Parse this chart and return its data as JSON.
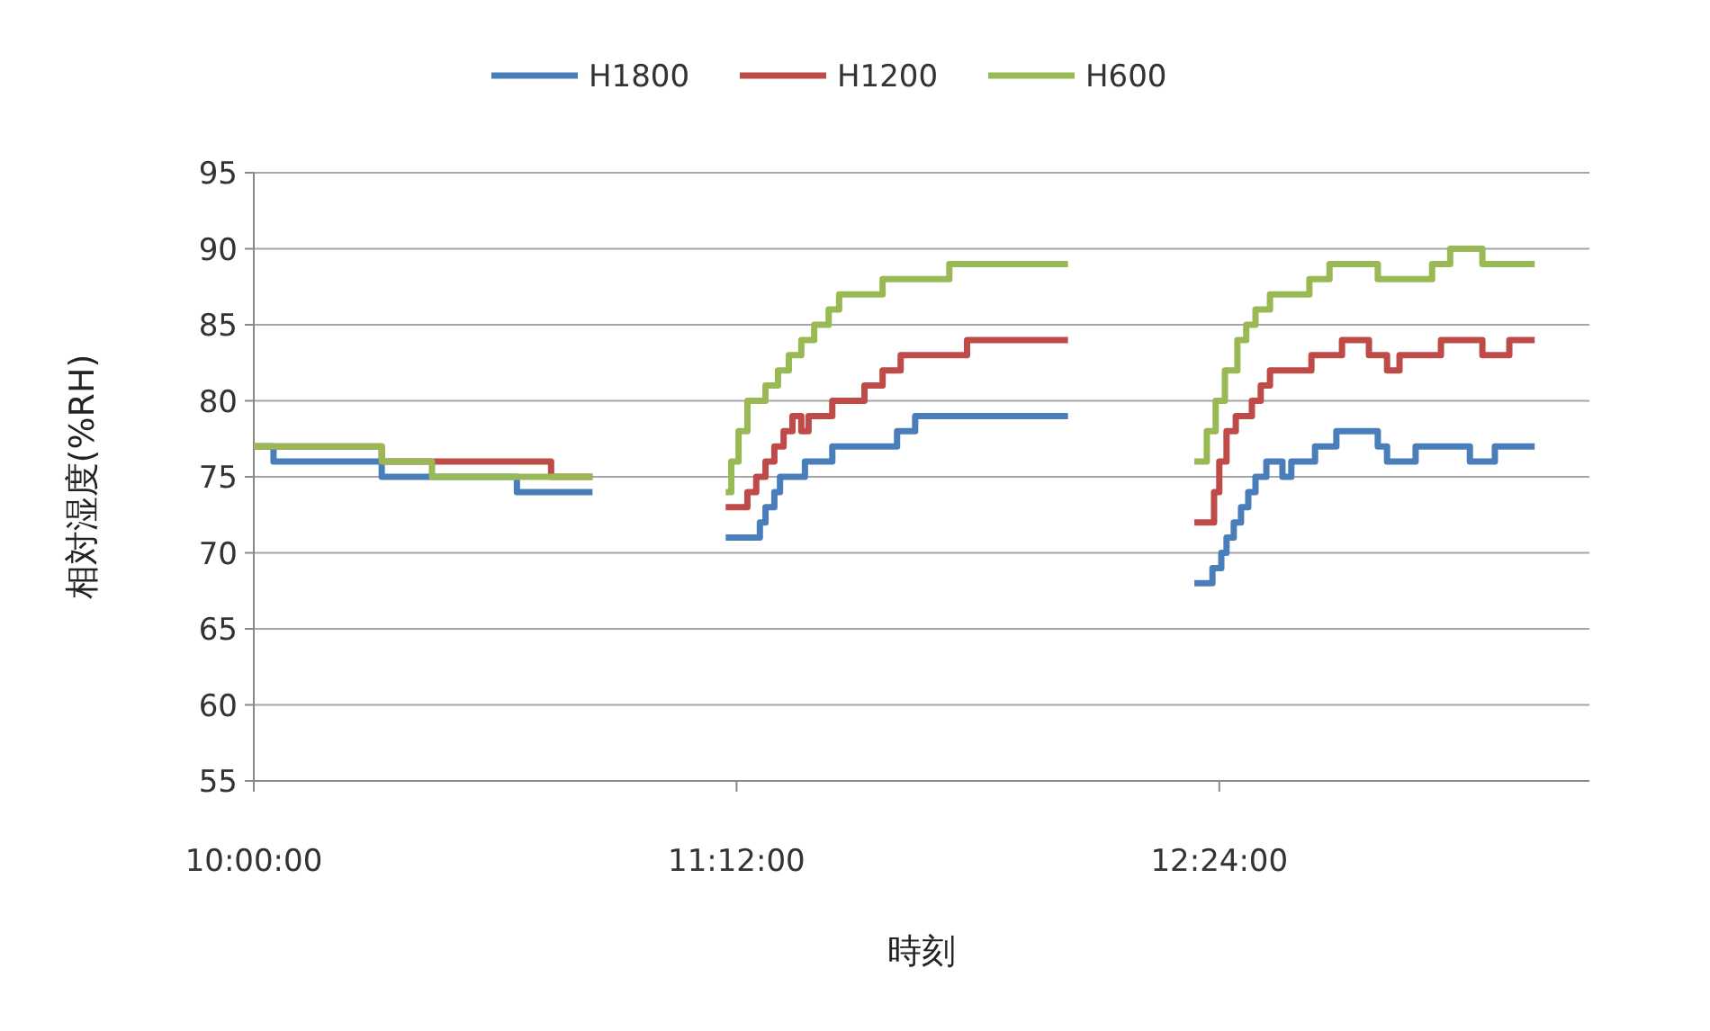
{
  "chart_data": {
    "type": "step",
    "xlabel": "時刻",
    "ylabel": "相対湿度(%RH)",
    "xlim": [
      10,
      13.32
    ],
    "xticks": [
      {
        "value": 10,
        "label": "10:00:00"
      },
      {
        "value": 11.2,
        "label": "11:12:00"
      },
      {
        "value": 12.4,
        "label": "12:24:00"
      }
    ],
    "ylim": [
      55,
      95
    ],
    "yticks": [
      55,
      60,
      65,
      70,
      75,
      80,
      85,
      90,
      95
    ],
    "grid": "y",
    "legend": "top",
    "line_style": "solid",
    "marker": "none",
    "series": [
      {
        "name": "H1800",
        "color": "#4a7ebb",
        "x": [
          10,
          10.049,
          10.318,
          10.654,
          10.842,
          null,
          11.173,
          11.258,
          11.272,
          11.294,
          11.308,
          11.37,
          11.438,
          11.599,
          11.644,
          12.024,
          null,
          12.338,
          12.383,
          12.405,
          12.418,
          12.436,
          12.454,
          12.472,
          12.49,
          12.517,
          12.557,
          12.579,
          12.638,
          12.691,
          12.794,
          12.817,
          12.888,
          13.023,
          13.085,
          13.184
        ],
        "values": [
          77,
          76,
          75,
          74,
          74,
          null,
          71,
          72,
          73,
          74,
          75,
          76,
          77,
          78,
          79,
          79,
          null,
          68,
          69,
          70,
          71,
          72,
          73,
          74,
          75,
          76,
          75,
          76,
          77,
          78,
          77,
          76,
          77,
          76,
          77,
          77
        ]
      },
      {
        "name": "H1200",
        "color": "#be4b48",
        "x": [
          10,
          10.318,
          10.739,
          10.842,
          null,
          11.173,
          11.227,
          11.249,
          11.272,
          11.294,
          11.317,
          11.339,
          11.361,
          11.379,
          11.438,
          11.518,
          11.563,
          11.608,
          11.773,
          12.024,
          null,
          12.338,
          12.387,
          12.4,
          12.418,
          12.441,
          12.481,
          12.503,
          12.526,
          12.629,
          12.705,
          12.772,
          12.817,
          12.848,
          12.951,
          13.054,
          13.121,
          13.184
        ],
        "values": [
          77,
          76,
          75,
          75,
          null,
          73,
          74,
          75,
          76,
          77,
          78,
          79,
          78,
          79,
          80,
          81,
          82,
          83,
          84,
          84,
          null,
          72,
          74,
          76,
          78,
          79,
          80,
          81,
          82,
          83,
          84,
          83,
          82,
          83,
          84,
          83,
          84,
          84
        ]
      },
      {
        "name": "H600",
        "color": "#98b954",
        "x": [
          10,
          10.318,
          10.443,
          10.842,
          null,
          11.173,
          11.187,
          11.205,
          11.227,
          11.272,
          11.303,
          11.33,
          11.361,
          11.393,
          11.429,
          11.455,
          11.563,
          11.729,
          12.024,
          null,
          12.338,
          12.369,
          12.391,
          12.414,
          12.445,
          12.467,
          12.49,
          12.526,
          12.624,
          12.674,
          12.794,
          12.929,
          12.974,
          13.054,
          13.184
        ],
        "values": [
          77,
          76,
          75,
          75,
          null,
          74,
          76,
          78,
          80,
          81,
          82,
          83,
          84,
          85,
          86,
          87,
          88,
          89,
          89,
          null,
          76,
          78,
          80,
          82,
          84,
          85,
          86,
          87,
          88,
          89,
          88,
          89,
          90,
          89,
          89
        ]
      }
    ]
  }
}
